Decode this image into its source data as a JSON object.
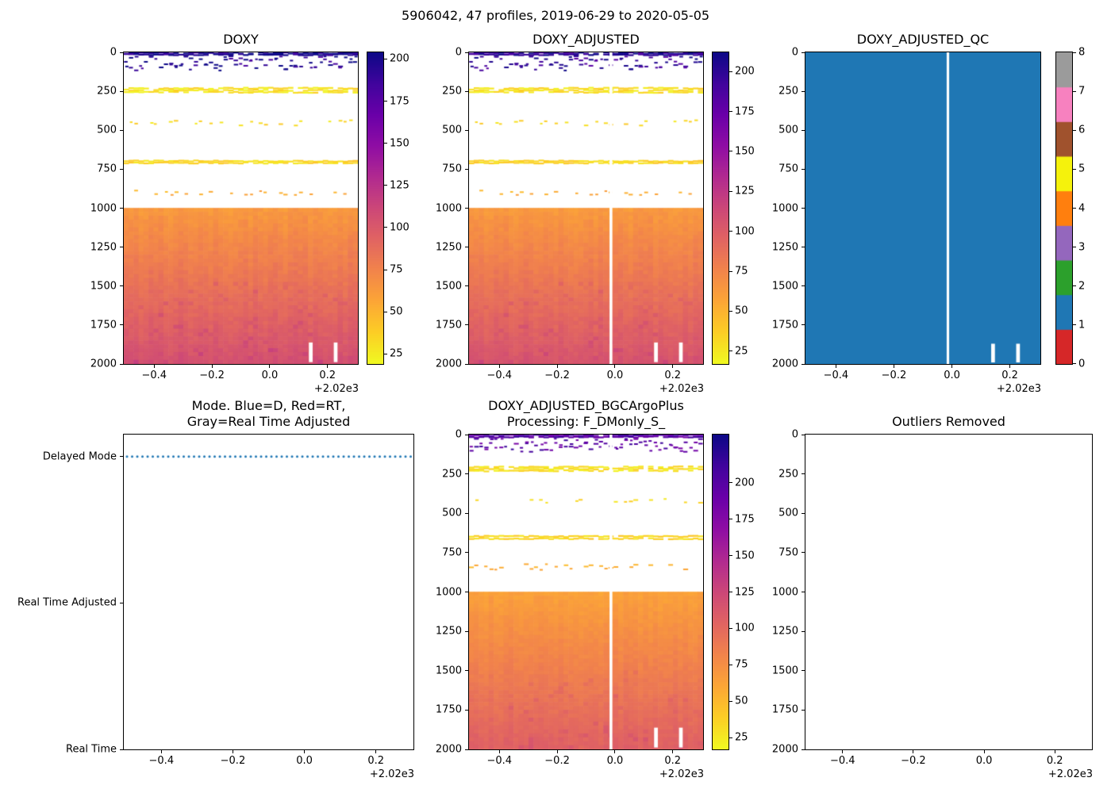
{
  "figure": {
    "suptitle": "5906042, 47 profiles, 2019-06-29 to 2020-05-05",
    "background_color": "#ffffff"
  },
  "chart_data": {
    "type": "heatmap",
    "float_id": "5906042",
    "n_profiles": 47,
    "date_range": [
      "2019-06-29",
      "2020-05-05"
    ],
    "x_axis": {
      "xlim": [
        -0.505,
        0.305
      ],
      "ticks": [
        -0.4,
        -0.2,
        0.0,
        0.2
      ],
      "tick_labels": [
        "−0.4",
        "−0.2",
        "0.0",
        "0.2"
      ],
      "offset_text": "+2.02e3"
    },
    "depth_axis": {
      "ylim": [
        0,
        2000
      ],
      "ticks": [
        0,
        250,
        500,
        750,
        1000,
        1250,
        1500,
        1750,
        2000
      ]
    },
    "colormap": "plasma_r",
    "colormap_anchors": [
      "#0d0887",
      "#41049d",
      "#6a00a8",
      "#8f0da4",
      "#b12a90",
      "#cc4778",
      "#e16462",
      "#f2844b",
      "#fca636",
      "#fcce25",
      "#f0f921"
    ],
    "panels": [
      {
        "title": "DOXY",
        "type": "profile-heatmap",
        "seed": 7,
        "colorbar": {
          "vmin": 19,
          "vmax": 204,
          "ticks": [
            25,
            50,
            75,
            100,
            125,
            150,
            175,
            200
          ]
        },
        "bands": [
          {
            "kind": "rows",
            "depth": [
              0,
              20
            ],
            "value": [
              185,
              215
            ],
            "density": 0.93,
            "rows": 2
          },
          {
            "kind": "scatter",
            "depth": [
              20,
              112
            ],
            "value": [
              180,
              215
            ],
            "per_col": 1.7,
            "bias": 1.3
          },
          {
            "kind": "rows",
            "depth": [
              225,
              262
            ],
            "value": [
              20,
              38
            ],
            "density": 0.82
          },
          {
            "kind": "scatter",
            "depth": [
              430,
              465
            ],
            "value": [
              24,
              40
            ],
            "per_col": 0.4
          },
          {
            "kind": "rows",
            "depth": [
              692,
              716
            ],
            "value": [
              26,
              42
            ],
            "density": 0.95
          },
          {
            "kind": "scatter",
            "depth": [
              882,
              915
            ],
            "value": [
              44,
              62
            ],
            "per_col": 0.45
          }
        ],
        "deep": {
          "depth": [
            1000,
            2000
          ],
          "value": [
            64,
            107
          ]
        },
        "missing_profiles": [],
        "bottom_gaps": [
          {
            "col": 37,
            "from_depth": 1862
          },
          {
            "col": 42,
            "from_depth": 1862
          }
        ]
      },
      {
        "title": "DOXY_ADJUSTED",
        "type": "profile-heatmap",
        "seed": 7,
        "colorbar": {
          "vmin": 17,
          "vmax": 212,
          "ticks": [
            25,
            50,
            75,
            100,
            125,
            150,
            175,
            200
          ]
        },
        "bands": [
          {
            "kind": "rows",
            "depth": [
              0,
              20
            ],
            "value": [
              185,
              215
            ],
            "density": 0.93,
            "rows": 2
          },
          {
            "kind": "scatter",
            "depth": [
              20,
              112
            ],
            "value": [
              180,
              215
            ],
            "per_col": 1.7,
            "bias": 1.3
          },
          {
            "kind": "rows",
            "depth": [
              225,
              262
            ],
            "value": [
              20,
              38
            ],
            "density": 0.82
          },
          {
            "kind": "scatter",
            "depth": [
              430,
              465
            ],
            "value": [
              24,
              40
            ],
            "per_col": 0.4
          },
          {
            "kind": "rows",
            "depth": [
              692,
              716
            ],
            "value": [
              26,
              42
            ],
            "density": 0.95
          },
          {
            "kind": "scatter",
            "depth": [
              882,
              915
            ],
            "value": [
              44,
              62
            ],
            "per_col": 0.45
          }
        ],
        "deep": {
          "depth": [
            1000,
            2000
          ],
          "value": [
            64,
            107
          ]
        },
        "missing_profiles": [
          28
        ],
        "bottom_gaps": [
          {
            "col": 37,
            "from_depth": 1862
          },
          {
            "col": 42,
            "from_depth": 1862
          }
        ]
      },
      {
        "title": "DOXY_ADJUSTED_QC",
        "type": "qc",
        "fill_value": 1,
        "fill_color": "#1f77b4",
        "qc_scale": {
          "values": [
            0,
            1,
            2,
            3,
            4,
            5,
            6,
            7,
            8
          ],
          "colors": [
            "#d62728",
            "#1f77b4",
            "#2ca02c",
            "#9467bd",
            "#ff7f0e",
            "#f5f20c",
            "#a0522d",
            "#f781bf",
            "#9b9b9b"
          ]
        },
        "missing_profiles": [
          28
        ],
        "bottom_gaps": [
          {
            "col": 37,
            "from_depth": 1870
          },
          {
            "col": 42,
            "from_depth": 1870
          }
        ]
      },
      {
        "title": "Mode. Blue=D, Red=RT,\nGray=Real Time Adjusted",
        "type": "mode",
        "ylim": [
          0,
          2.15
        ],
        "categories": [
          {
            "label": "Delayed Mode",
            "value": 2
          },
          {
            "label": "Real Time Adjusted",
            "value": 1
          },
          {
            "label": "Real Time",
            "value": 0
          }
        ],
        "series": {
          "mode_label": "Delayed Mode",
          "value": 2,
          "color": "#1f77b4",
          "style": "dotted"
        }
      },
      {
        "title": "DOXY_ADJUSTED_BGCArgoPlus\nProcessing: F_DMonly_S_",
        "type": "profile-heatmap",
        "seed": 29,
        "colorbar": {
          "vmin": 17,
          "vmax": 233,
          "ticks": [
            25,
            50,
            75,
            100,
            125,
            150,
            175,
            200
          ]
        },
        "bands": [
          {
            "kind": "rows",
            "depth": [
              0,
              20
            ],
            "value": [
              185,
              215
            ],
            "density": 0.93,
            "rows": 2
          },
          {
            "kind": "scatter",
            "depth": [
              20,
              105
            ],
            "value": [
              180,
              215
            ],
            "per_col": 1.7,
            "bias": 1.3
          },
          {
            "kind": "rows",
            "depth": [
              200,
              236
            ],
            "value": [
              20,
              38
            ],
            "density": 0.82
          },
          {
            "kind": "scatter",
            "depth": [
              396,
              428
            ],
            "value": [
              24,
              40
            ],
            "per_col": 0.4
          },
          {
            "kind": "rows",
            "depth": [
              640,
              668
            ],
            "value": [
              26,
              44
            ],
            "density": 0.95
          },
          {
            "kind": "scatter",
            "depth": [
              818,
              855
            ],
            "value": [
              46,
              64
            ],
            "per_col": 0.45
          }
        ],
        "deep": {
          "depth": [
            1000,
            2000
          ],
          "value": [
            64,
            107
          ]
        },
        "missing_profiles": [
          28
        ],
        "bottom_gaps": [
          {
            "col": 37,
            "from_depth": 1862
          },
          {
            "col": 42,
            "from_depth": 1862
          }
        ]
      },
      {
        "title": "Outliers Removed",
        "type": "empty"
      }
    ]
  }
}
